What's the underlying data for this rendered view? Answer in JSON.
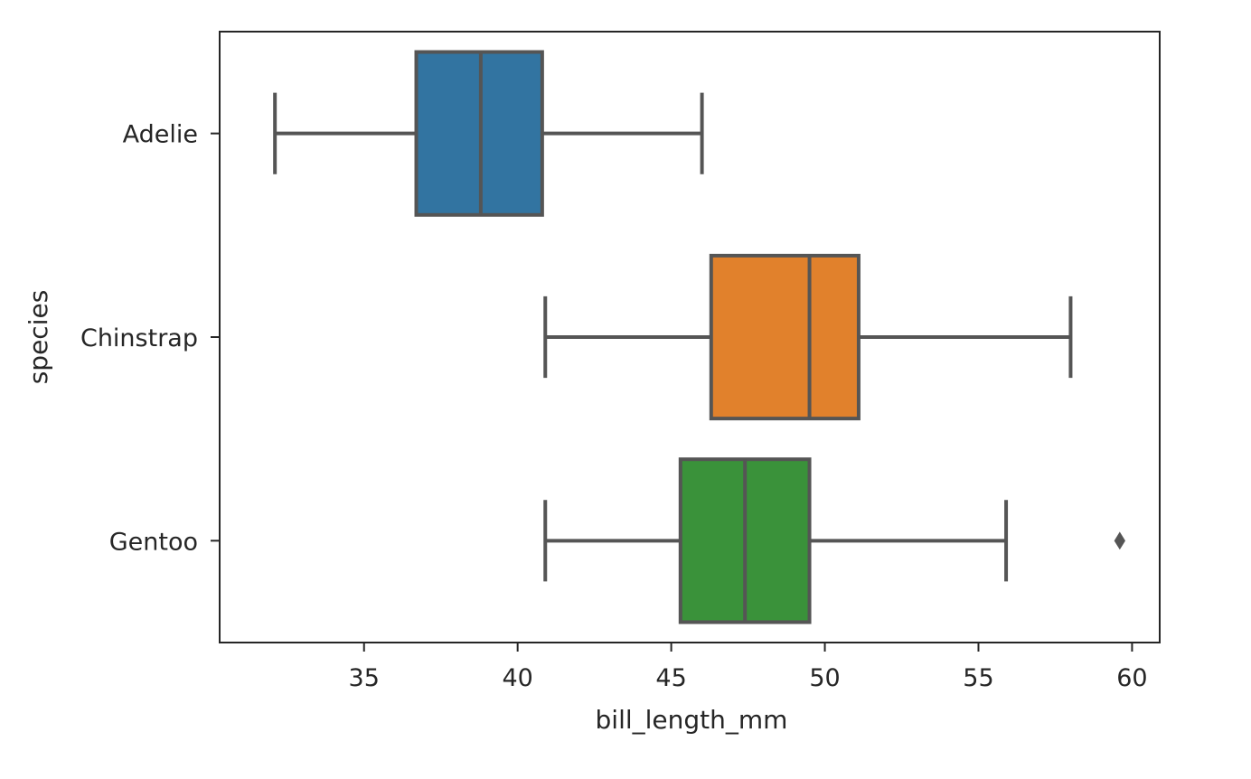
{
  "chart_data": {
    "type": "boxplot",
    "orientation": "horizontal",
    "xlabel": "bill_length_mm",
    "ylabel": "species",
    "xlim": [
      30.3,
      60.9
    ],
    "xticks": [
      35,
      40,
      45,
      50,
      55,
      60
    ],
    "grid": false,
    "colors": {
      "line": "#555555",
      "frame": "#262626"
    },
    "series": [
      {
        "name": "Adelie",
        "whisker_low": 32.1,
        "q1": 36.7,
        "median": 38.8,
        "q3": 40.8,
        "whisker_high": 46.0,
        "outliers": [],
        "color": "#3274a1"
      },
      {
        "name": "Chinstrap",
        "whisker_low": 40.9,
        "q1": 46.3,
        "median": 49.5,
        "q3": 51.1,
        "whisker_high": 58.0,
        "outliers": [],
        "color": "#e1812c"
      },
      {
        "name": "Gentoo",
        "whisker_low": 40.9,
        "q1": 45.3,
        "median": 47.4,
        "q3": 49.5,
        "whisker_high": 55.9,
        "outliers": [
          59.6
        ],
        "color": "#3a923a"
      }
    ]
  }
}
